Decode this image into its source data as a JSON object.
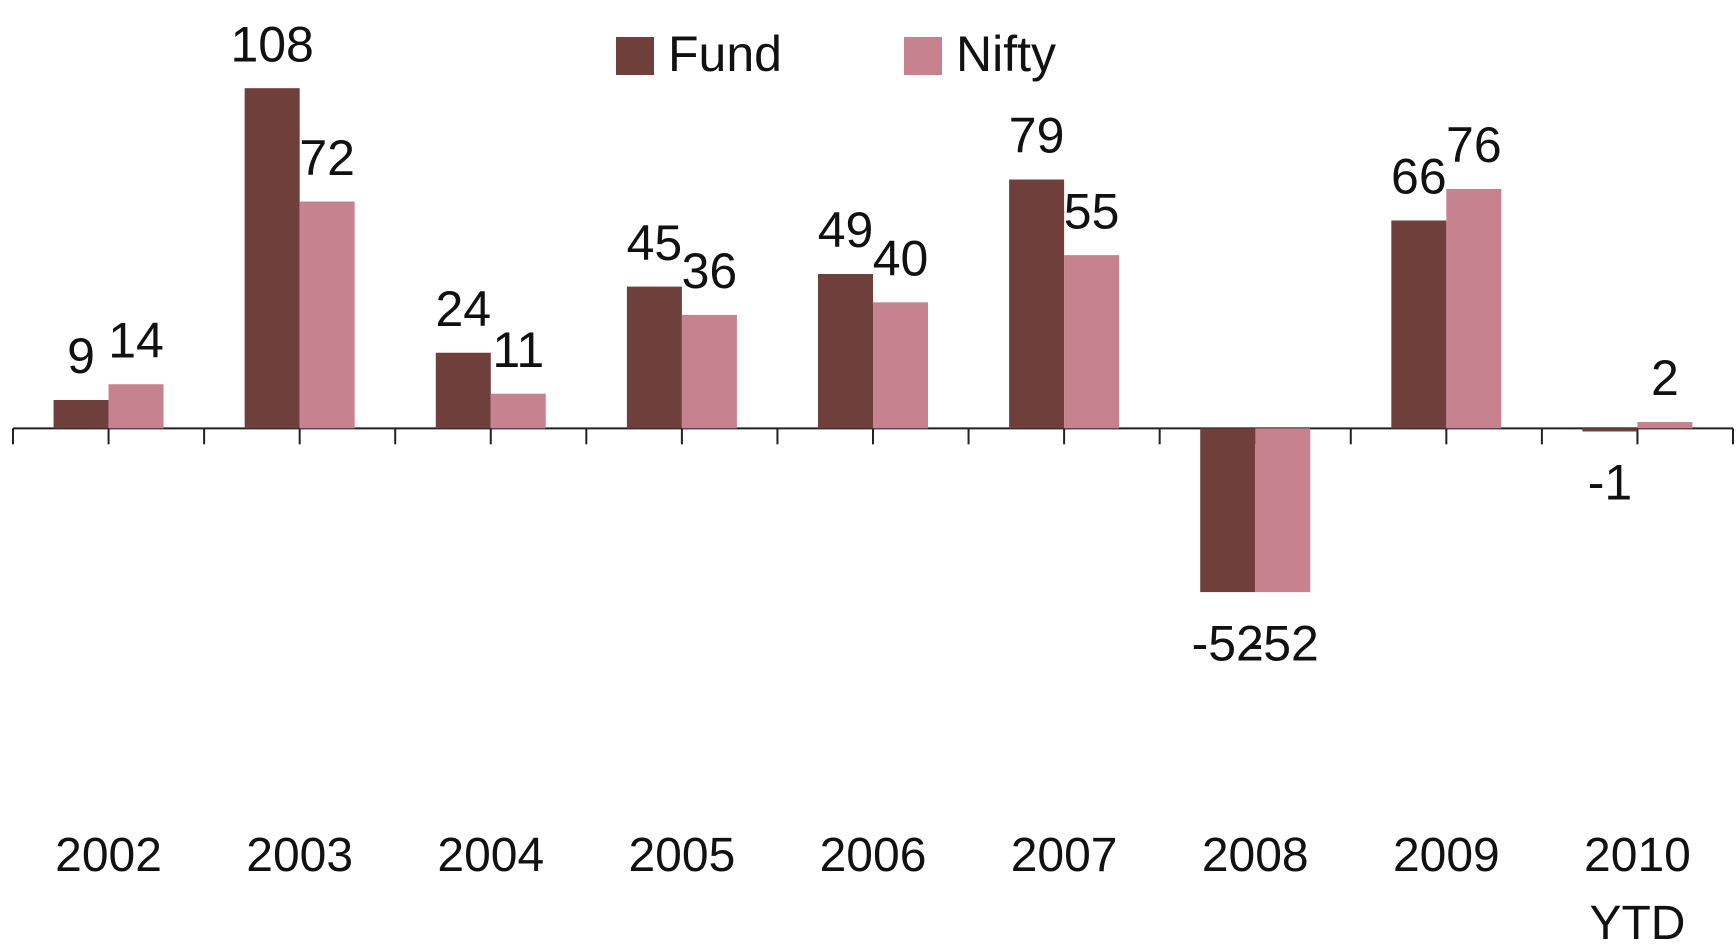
{
  "chart_data": {
    "type": "bar",
    "categories": [
      "2002",
      "2003",
      "2004",
      "2005",
      "2006",
      "2007",
      "2008",
      "2009",
      "2010 YTD"
    ],
    "series": [
      {
        "name": "Fund",
        "color": "#6e3f3b",
        "values": [
          9,
          108,
          24,
          45,
          49,
          79,
          -52,
          66,
          -1
        ]
      },
      {
        "name": "Nifty",
        "color": "#c6828e",
        "values": [
          14,
          72,
          11,
          36,
          40,
          55,
          -52,
          76,
          2
        ]
      }
    ],
    "ylim": [
      -165,
      136
    ],
    "legend": "top"
  }
}
